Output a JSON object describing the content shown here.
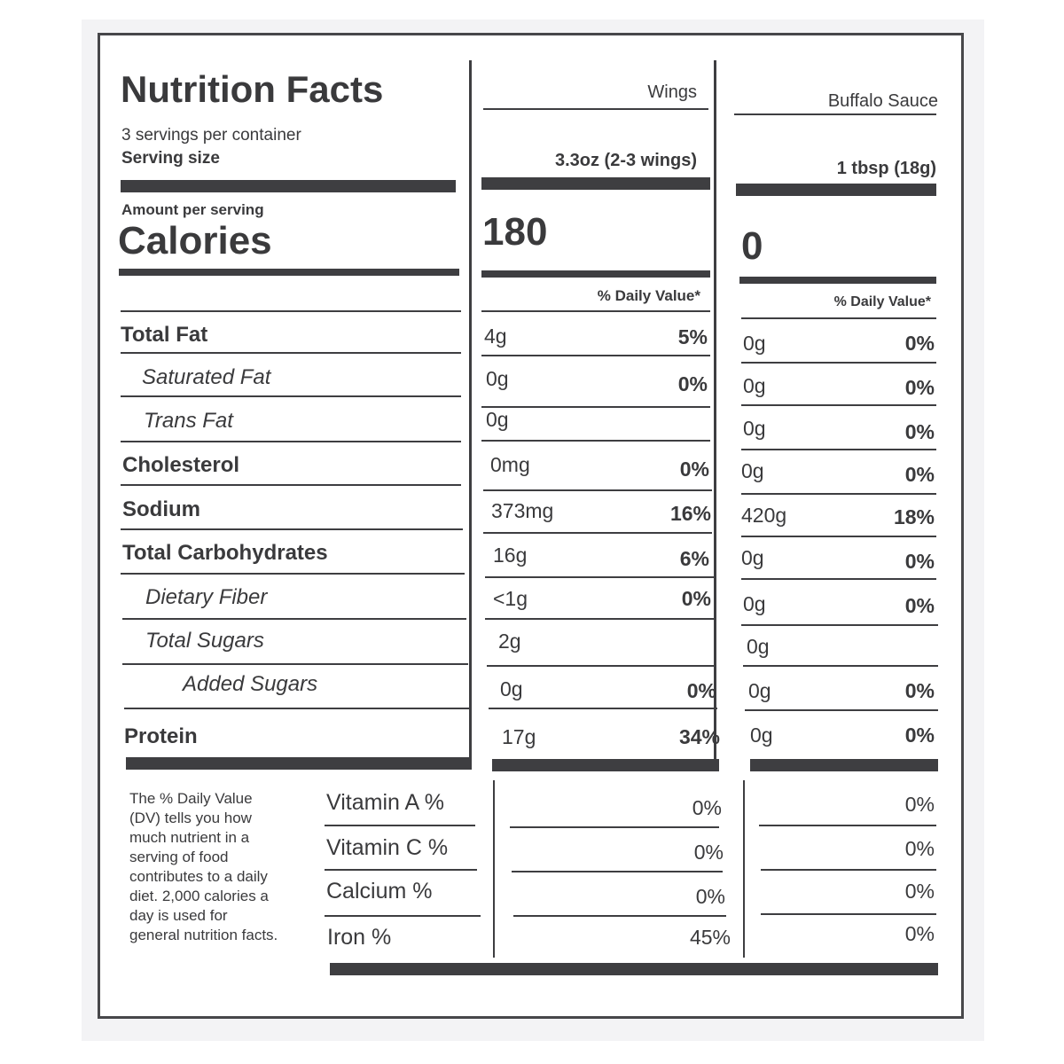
{
  "title": "Nutrition Facts",
  "servings_per_container": "3 servings per container",
  "serving_size_label": "Serving size",
  "amount_per_serving": "Amount per serving",
  "calories_label": "Calories",
  "dv_header": "% Daily Value*",
  "columns": [
    {
      "name": "Wings",
      "serving_size": "3.3oz (2-3 wings)",
      "calories": "180"
    },
    {
      "name": "Buffalo Sauce",
      "serving_size": "1 tbsp (18g)",
      "calories": "0"
    }
  ],
  "nutrients": [
    {
      "label": "Total Fat",
      "wings_amount": "4g",
      "wings_dv": "5%",
      "sauce_amount": "0g",
      "sauce_dv": "0%"
    },
    {
      "label": "Saturated Fat",
      "wings_amount": "0g",
      "wings_dv": "0%",
      "sauce_amount": "0g",
      "sauce_dv": "0%"
    },
    {
      "label": "Trans Fat",
      "wings_amount": "0g",
      "wings_dv": "",
      "sauce_amount": "0g",
      "sauce_dv": "0%"
    },
    {
      "label": "Cholesterol",
      "wings_amount": "0mg",
      "wings_dv": "0%",
      "sauce_amount": "0g",
      "sauce_dv": "0%"
    },
    {
      "label": "Sodium",
      "wings_amount": "373mg",
      "wings_dv": "16%",
      "sauce_amount": "420g",
      "sauce_dv": "18%"
    },
    {
      "label": "Total Carbohydrates",
      "wings_amount": "16g",
      "wings_dv": "6%",
      "sauce_amount": "0g",
      "sauce_dv": "0%"
    },
    {
      "label": "Dietary Fiber",
      "wings_amount": "<1g",
      "wings_dv": "0%",
      "sauce_amount": "0g",
      "sauce_dv": "0%"
    },
    {
      "label": "Total Sugars",
      "wings_amount": "2g",
      "wings_dv": "",
      "sauce_amount": "0g",
      "sauce_dv": ""
    },
    {
      "label": "Added Sugars",
      "wings_amount": "0g",
      "wings_dv": "0%",
      "sauce_amount": "0g",
      "sauce_dv": "0%"
    },
    {
      "label": "Protein",
      "wings_amount": "17g",
      "wings_dv": "34%",
      "sauce_amount": "0g",
      "sauce_dv": "0%"
    }
  ],
  "vitamins": [
    {
      "label": "Vitamin A %",
      "wings": "0%",
      "sauce": "0%"
    },
    {
      "label": "Vitamin C %",
      "wings": "0%",
      "sauce": "0%"
    },
    {
      "label": "Calcium %",
      "wings": "0%",
      "sauce": "0%"
    },
    {
      "label": "Iron %",
      "wings": "45%",
      "sauce": "0%"
    }
  ],
  "footnote": "The % Daily Value (DV) tells you how much nutrient in a serving of food contributes to a daily diet. 2,000 calories a day is used for general nutrition facts."
}
